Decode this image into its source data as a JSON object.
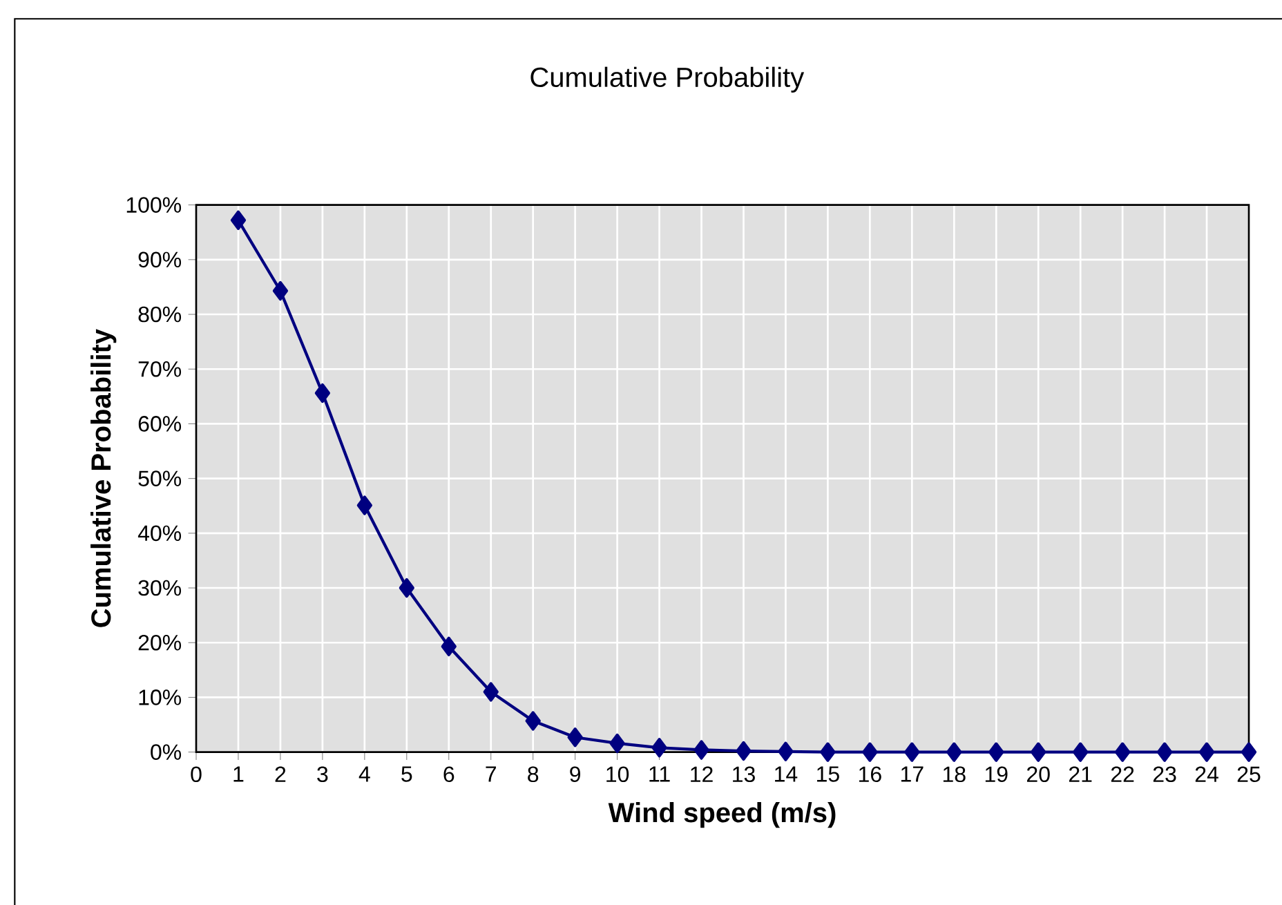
{
  "chart_data": {
    "type": "line",
    "title": "Cumulative  Probability",
    "xlabel": "Wind speed (m/s)",
    "ylabel": "Cumulative  Probability",
    "x": [
      1,
      2,
      3,
      4,
      5,
      6,
      7,
      8,
      9,
      10,
      11,
      12,
      13,
      14,
      15,
      16,
      17,
      18,
      19,
      20,
      21,
      22,
      23,
      24,
      25
    ],
    "series": [
      {
        "color": "#000080",
        "values": [
          97.2,
          84.3,
          65.6,
          45.1,
          30.0,
          19.3,
          11.0,
          5.7,
          2.7,
          1.6,
          0.8,
          0.4,
          0.2,
          0.1,
          0,
          0,
          0,
          0,
          0,
          0,
          0,
          0,
          0,
          0,
          0
        ]
      }
    ],
    "xlim": [
      0,
      25
    ],
    "xticks": [
      0,
      1,
      2,
      3,
      4,
      5,
      6,
      7,
      8,
      9,
      10,
      11,
      12,
      13,
      14,
      15,
      16,
      17,
      18,
      19,
      20,
      21,
      22,
      23,
      24,
      25
    ],
    "ylim": [
      0,
      100
    ],
    "yticks": [
      {
        "value": 0,
        "label": "0%"
      },
      {
        "value": 10,
        "label": "10%"
      },
      {
        "value": 20,
        "label": "20%"
      },
      {
        "value": 30,
        "label": "30%"
      },
      {
        "value": 40,
        "label": "40%"
      },
      {
        "value": 50,
        "label": "50%"
      },
      {
        "value": 60,
        "label": "60%"
      },
      {
        "value": 70,
        "label": "70%"
      },
      {
        "value": 80,
        "label": "80%"
      },
      {
        "value": 90,
        "label": "90%"
      },
      {
        "value": 100,
        "label": "100%"
      }
    ],
    "grid": true,
    "marker": "diamond",
    "line_style": "solid"
  }
}
